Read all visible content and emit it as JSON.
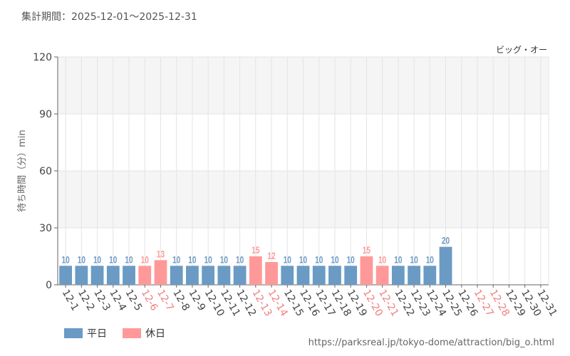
{
  "header": {
    "period": "集計期間：2025-12-01～2025-12-31"
  },
  "attraction": "ビッグ・オー",
  "source_url": "https://parksreal.jp/tokyo-dome/attraction/big_o.html",
  "colors": {
    "weekday": "#6b9ac4",
    "holiday": "#ff9999",
    "holiday_label": "#f08080",
    "text": "#444444"
  },
  "legend": {
    "weekday": "平日",
    "holiday": "休日"
  },
  "chart_data": {
    "type": "bar",
    "title": "",
    "xlabel": "",
    "ylabel": "待ち時間（分）min",
    "ylim": [
      0,
      120
    ],
    "yticks": [
      0,
      30,
      60,
      90,
      120
    ],
    "categories": [
      "12-1",
      "12-2",
      "12-3",
      "12-4",
      "12-5",
      "12-6",
      "12-7",
      "12-8",
      "12-9",
      "12-10",
      "12-11",
      "12-12",
      "12-13",
      "12-14",
      "12-15",
      "12-16",
      "12-17",
      "12-18",
      "12-19",
      "12-20",
      "12-21",
      "12-22",
      "12-23",
      "12-24",
      "12-25",
      "12-26",
      "12-27",
      "12-28",
      "12-29",
      "12-30",
      "12-31"
    ],
    "values": [
      10,
      10,
      10,
      10,
      10,
      10,
      13,
      10,
      10,
      10,
      10,
      10,
      15,
      12,
      10,
      10,
      10,
      10,
      10,
      15,
      10,
      10,
      10,
      10,
      20,
      null,
      null,
      null,
      null,
      null,
      null
    ],
    "day_type": [
      "weekday",
      "weekday",
      "weekday",
      "weekday",
      "weekday",
      "holiday",
      "holiday",
      "weekday",
      "weekday",
      "weekday",
      "weekday",
      "weekday",
      "holiday",
      "holiday",
      "weekday",
      "weekday",
      "weekday",
      "weekday",
      "weekday",
      "holiday",
      "holiday",
      "weekday",
      "weekday",
      "weekday",
      "weekday",
      "weekday",
      "holiday",
      "holiday",
      "weekday",
      "weekday",
      "weekday"
    ],
    "series": [
      {
        "name": "平日",
        "key": "weekday"
      },
      {
        "name": "休日",
        "key": "holiday"
      }
    ]
  }
}
